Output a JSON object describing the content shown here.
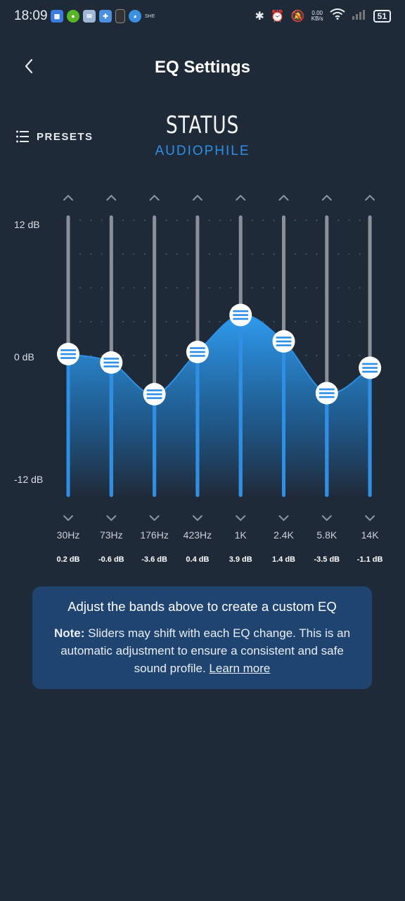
{
  "status_bar": {
    "time": "18:09",
    "app_icons": [
      "calendar-icon",
      "duolingo-icon",
      "mail-icon",
      "app-icon",
      "tablet-icon",
      "globe-icon"
    ],
    "small_text": "SHE",
    "net_speed_value": "0.00",
    "net_speed_unit": "KB/s",
    "battery": "51"
  },
  "header": {
    "title": "EQ Settings"
  },
  "presets": {
    "label": "PRESETS"
  },
  "brand": {
    "name": "STATUS",
    "mode": "AUDIOPHILE"
  },
  "eq": {
    "scale_labels": [
      "12 dB",
      "0 dB",
      "-12 dB"
    ],
    "db_min": -12,
    "db_max": 12,
    "bands": [
      {
        "freq": "30Hz",
        "gain": 0.2,
        "gain_label": "0.2 dB"
      },
      {
        "freq": "73Hz",
        "gain": -0.6,
        "gain_label": "-0.6 dB"
      },
      {
        "freq": "176Hz",
        "gain": -3.6,
        "gain_label": "-3.6 dB"
      },
      {
        "freq": "423Hz",
        "gain": 0.4,
        "gain_label": "0.4 dB"
      },
      {
        "freq": "1K",
        "gain": 3.9,
        "gain_label": "3.9 dB"
      },
      {
        "freq": "2.4K",
        "gain": 1.4,
        "gain_label": "1.4 dB"
      },
      {
        "freq": "5.8K",
        "gain": -3.5,
        "gain_label": "-3.5 dB"
      },
      {
        "freq": "14K",
        "gain": -1.1,
        "gain_label": "-1.1 dB"
      }
    ],
    "colors": {
      "accent": "#2d8fe6",
      "track": "#8a9099",
      "handle": "#ffffff",
      "handle_lines": "#2d8fe6"
    }
  },
  "note": {
    "heading": "Adjust the bands above to create a custom EQ",
    "note_label": "Note:",
    "note_text": " Sliders may shift with each EQ change. This is an automatic adjustment to ensure a consistent and safe sound profile. ",
    "link": "Learn more"
  }
}
